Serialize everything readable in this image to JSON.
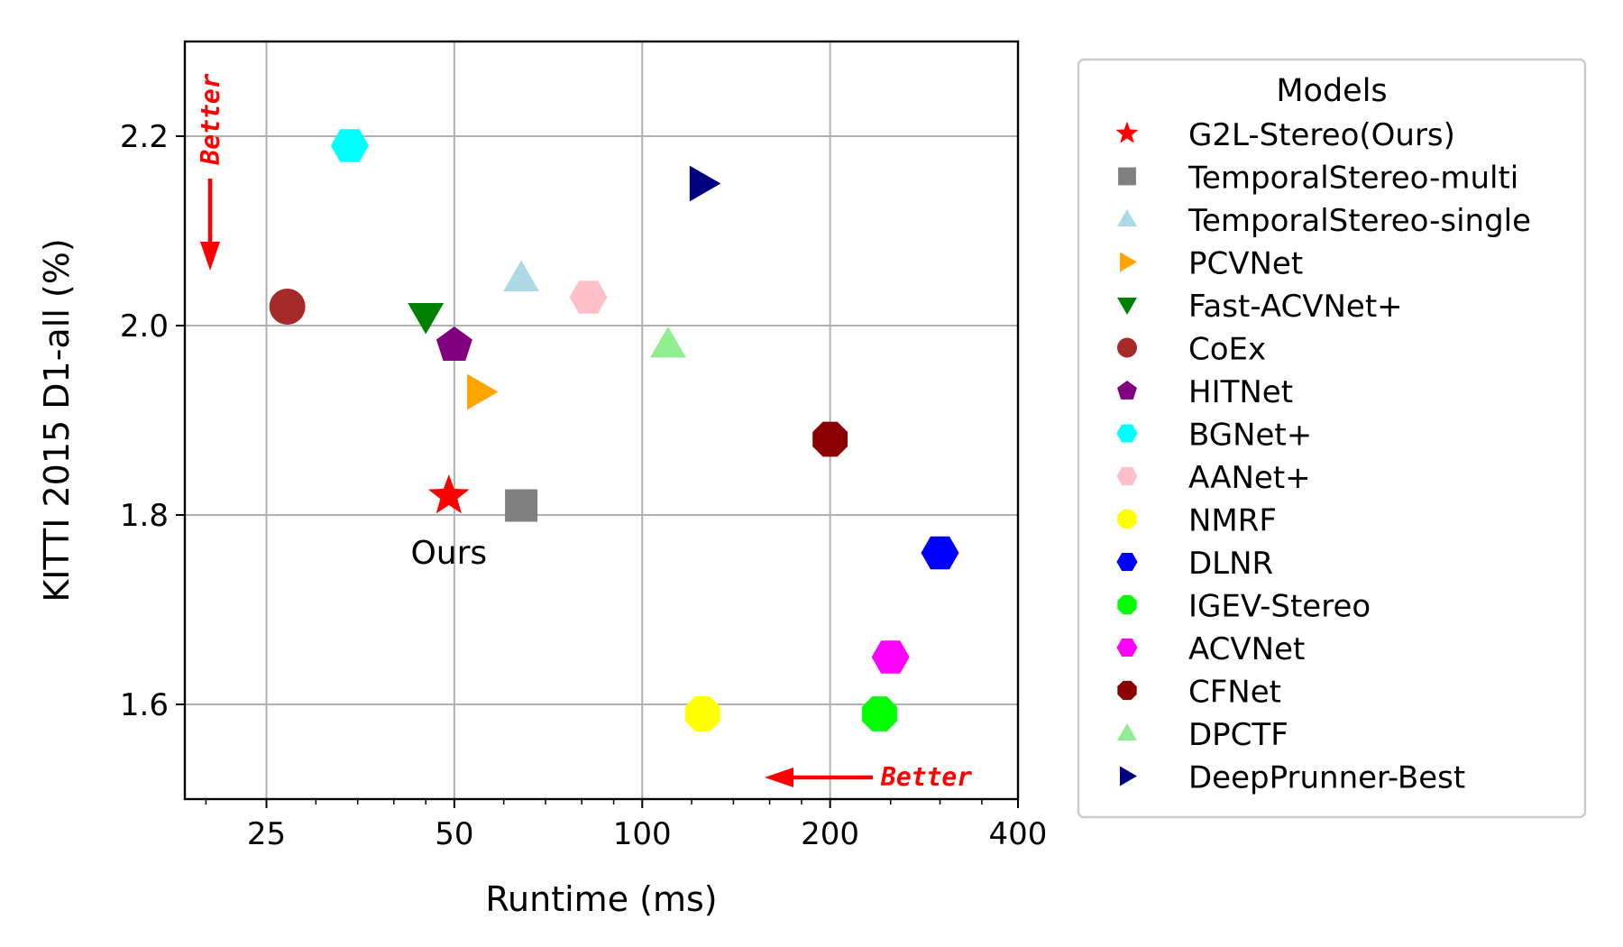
{
  "chart_data": {
    "type": "scatter",
    "xlabel": "Runtime (ms)",
    "ylabel": "KITTI 2015 D1-all (%)",
    "xscale": "log2",
    "xlim": [
      18.5,
      400
    ],
    "ylim": [
      1.5,
      2.3
    ],
    "xticks": [
      25,
      50,
      100,
      200,
      400
    ],
    "xtick_labels": [
      "25",
      "50",
      "100",
      "200",
      "400"
    ],
    "yticks": [
      1.6,
      1.8,
      2.0,
      2.2
    ],
    "ytick_labels": [
      "1.6",
      "1.8",
      "2.0",
      "2.2"
    ],
    "grid": true,
    "legend": {
      "title": "Models",
      "placement": "outside-right"
    },
    "series": [
      {
        "name": "G2L-Stereo(Ours)",
        "x": 49,
        "y": 1.82,
        "marker": "star",
        "color": "#ff0000"
      },
      {
        "name": "TemporalStereo-multi",
        "x": 64,
        "y": 1.81,
        "marker": "square",
        "color": "#808080"
      },
      {
        "name": "TemporalStereo-single",
        "x": 64,
        "y": 2.05,
        "marker": "triangle-up",
        "color": "#add8e6"
      },
      {
        "name": "PCVNet",
        "x": 55,
        "y": 1.93,
        "marker": "triangle-right",
        "color": "#ffa500"
      },
      {
        "name": "Fast-ACVNet+",
        "x": 45,
        "y": 2.01,
        "marker": "triangle-down",
        "color": "#008000"
      },
      {
        "name": "CoEx",
        "x": 27,
        "y": 2.02,
        "marker": "circle",
        "color": "#a52a2a"
      },
      {
        "name": "HITNet",
        "x": 50,
        "y": 1.98,
        "marker": "pentagon",
        "color": "#800080"
      },
      {
        "name": "BGNet+",
        "x": 34,
        "y": 2.19,
        "marker": "hexagon",
        "color": "#00ffff"
      },
      {
        "name": "AANet+",
        "x": 82,
        "y": 2.03,
        "marker": "hexagon",
        "color": "#ffc0cb"
      },
      {
        "name": "NMRF",
        "x": 125,
        "y": 1.59,
        "marker": "octagon",
        "color": "#ffff00"
      },
      {
        "name": "DLNR",
        "x": 300,
        "y": 1.76,
        "marker": "hexagon",
        "color": "#0000ff"
      },
      {
        "name": "IGEV-Stereo",
        "x": 240,
        "y": 1.59,
        "marker": "octagon",
        "color": "#00ff00"
      },
      {
        "name": "ACVNet",
        "x": 250,
        "y": 1.65,
        "marker": "hexagon",
        "color": "#ff00ff"
      },
      {
        "name": "CFNet",
        "x": 200,
        "y": 1.88,
        "marker": "octagon",
        "color": "#8b0000"
      },
      {
        "name": "DPCTF",
        "x": 110,
        "y": 1.98,
        "marker": "triangle-up",
        "color": "#90ee90"
      },
      {
        "name": "DeepPrunner-Best",
        "x": 125,
        "y": 2.15,
        "marker": "triangle-right",
        "color": "#000080"
      }
    ],
    "annotations": [
      {
        "text": "Ours",
        "x": 49,
        "y": 1.76
      },
      {
        "text": "Better",
        "direction": "down",
        "color": "#ff0000"
      },
      {
        "text": "Better",
        "direction": "left",
        "color": "#ff0000"
      }
    ]
  }
}
